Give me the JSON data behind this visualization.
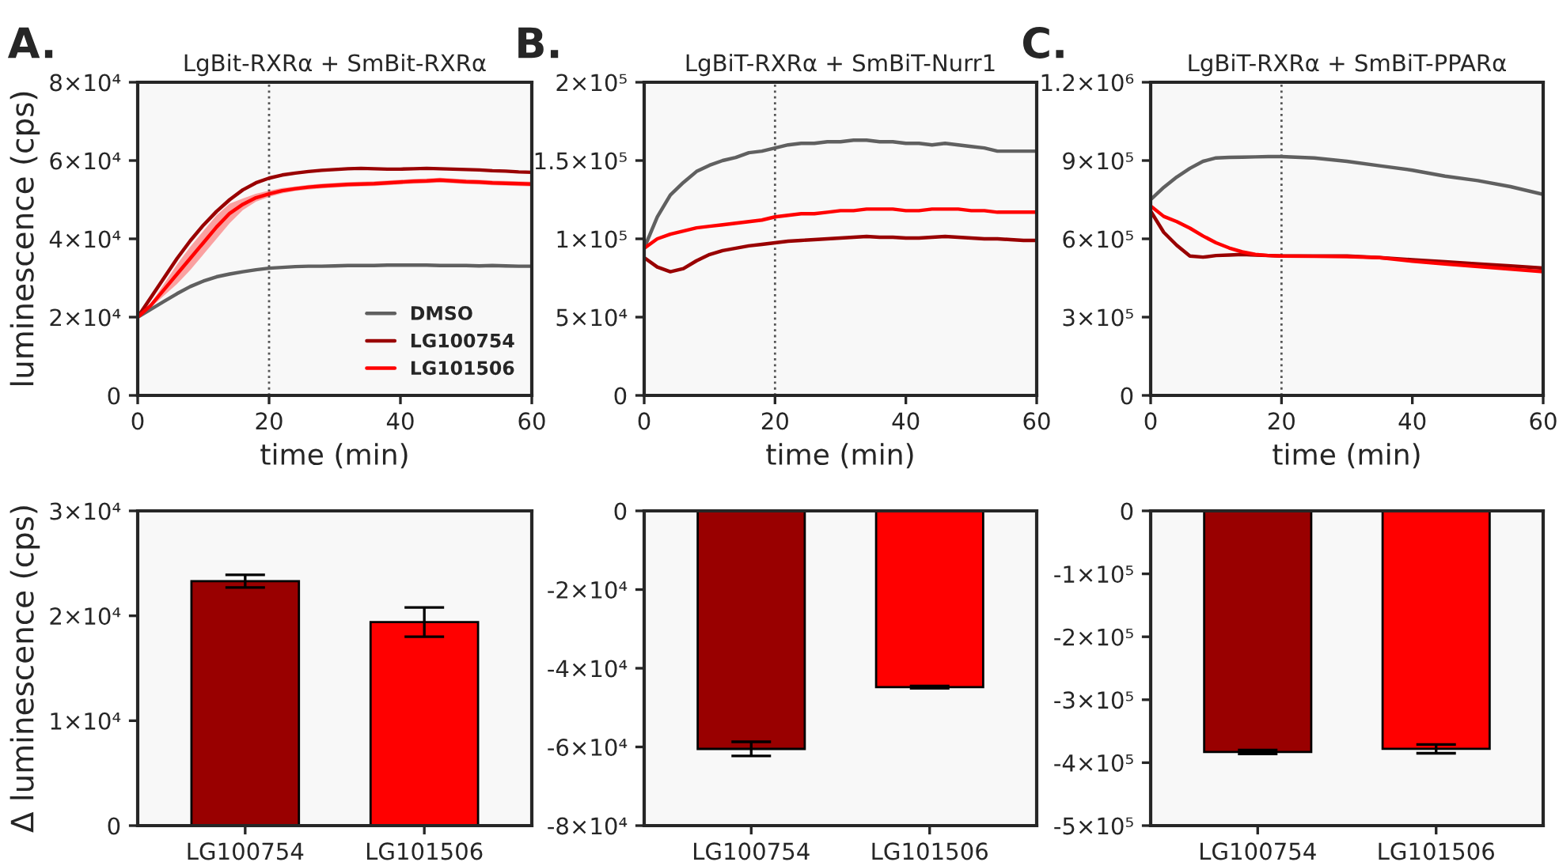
{
  "chart_data": [
    {
      "type": "line",
      "title": "LgBit-RXRα + SmBit-RXRα",
      "xlabel": "time (min)",
      "ylabel": "luminescence (cps)",
      "annotations": [
        "A."
      ],
      "x": [
        0,
        2,
        4,
        6,
        8,
        10,
        12,
        14,
        16,
        18,
        20,
        22,
        24,
        26,
        28,
        30,
        32,
        34,
        36,
        38,
        40,
        42,
        44,
        46,
        48,
        50,
        52,
        54,
        56,
        58,
        60
      ],
      "series": [
        {
          "name": "DMSO",
          "color": "#606060",
          "values": [
            20000,
            22000,
            24000,
            26000,
            27800,
            29200,
            30300,
            31000,
            31600,
            32100,
            32500,
            32700,
            32900,
            33000,
            33000,
            33100,
            33200,
            33200,
            33200,
            33300,
            33300,
            33300,
            33300,
            33200,
            33200,
            33200,
            33100,
            33200,
            33100,
            33000,
            33000
          ]
        },
        {
          "name": "LG100754",
          "color": "#990000",
          "values": [
            20000,
            25000,
            30000,
            35000,
            39500,
            43500,
            47000,
            50000,
            52500,
            54300,
            55500,
            56300,
            56800,
            57200,
            57500,
            57700,
            57900,
            58000,
            57900,
            57800,
            57800,
            57900,
            58000,
            57900,
            57800,
            57700,
            57600,
            57400,
            57300,
            57100,
            57000
          ]
        },
        {
          "name": "LG101506",
          "color": "#ff0000",
          "values": [
            20000,
            23000,
            27000,
            31000,
            35000,
            39000,
            43000,
            46500,
            48800,
            50500,
            51500,
            52300,
            52800,
            53200,
            53500,
            53700,
            53900,
            54000,
            54100,
            54300,
            54500,
            54700,
            54800,
            55000,
            54800,
            54600,
            54500,
            54300,
            54200,
            54100,
            54000
          ],
          "lower": [
            20000,
            22500,
            25500,
            28500,
            32000,
            36000,
            40000,
            44000,
            47300,
            49500,
            50700,
            51600,
            52200,
            52600,
            52900,
            53100,
            53300,
            53400,
            53500,
            53700,
            53900,
            54100,
            54200,
            54400,
            54200,
            54000,
            53900,
            53700,
            53600,
            53500,
            53400
          ],
          "upper": [
            20000,
            23500,
            28500,
            33500,
            38000,
            42000,
            46000,
            49000,
            50300,
            51500,
            52300,
            53000,
            53400,
            53800,
            54100,
            54300,
            54500,
            54600,
            54700,
            54900,
            55100,
            55300,
            55400,
            55600,
            55400,
            55200,
            55100,
            54900,
            54800,
            54700,
            54600
          ]
        }
      ],
      "xlim": [
        0,
        60
      ],
      "xticks": [
        0,
        20,
        40,
        60
      ],
      "ylim": [
        0,
        80000
      ],
      "yticks": [
        0,
        {
          "value": 20000,
          "label": "2×10⁴"
        },
        {
          "value": 40000,
          "label": "4×10⁴"
        },
        {
          "value": 60000,
          "label": "6×10⁴"
        },
        {
          "value": 80000,
          "label": "8×10⁴"
        }
      ],
      "ref_lines": [
        {
          "axis": "x",
          "value": 20,
          "color": "#555555",
          "line_style": "dotted"
        }
      ],
      "legend": "bottom right"
    },
    {
      "type": "line",
      "title": "LgBiT-RXRα + SmBiT-Nurr1",
      "xlabel": "time (min)",
      "annotations": [
        "B."
      ],
      "x": [
        0,
        2,
        4,
        6,
        8,
        10,
        12,
        14,
        16,
        18,
        20,
        22,
        24,
        26,
        28,
        30,
        32,
        34,
        36,
        38,
        40,
        42,
        44,
        46,
        48,
        50,
        52,
        54,
        56,
        58,
        60
      ],
      "series": [
        {
          "color": "#606060",
          "values": [
            94000,
            114000,
            128000,
            136000,
            143000,
            147000,
            150000,
            152000,
            155000,
            156000,
            158000,
            160000,
            161000,
            161000,
            162000,
            162000,
            163000,
            163000,
            162000,
            162000,
            161000,
            161000,
            160000,
            161000,
            160000,
            159000,
            158000,
            156000,
            156000,
            156000,
            156000
          ]
        },
        {
          "color": "#990000",
          "values": [
            88000,
            82000,
            79000,
            81000,
            86000,
            90000,
            92500,
            94000,
            95500,
            96500,
            97500,
            98500,
            99000,
            99500,
            100000,
            100500,
            101000,
            101500,
            101000,
            101000,
            100500,
            100500,
            101000,
            101500,
            101000,
            100500,
            100000,
            100000,
            99500,
            99000,
            99000
          ]
        },
        {
          "color": "#ff0000",
          "values": [
            94000,
            100000,
            103000,
            105000,
            107000,
            108000,
            109000,
            110000,
            111000,
            112000,
            114000,
            115000,
            116000,
            116000,
            117000,
            118000,
            118000,
            119000,
            119000,
            119000,
            118000,
            118000,
            119000,
            119000,
            119000,
            118000,
            118000,
            117000,
            117000,
            117000,
            117000
          ]
        }
      ],
      "xlim": [
        0,
        60
      ],
      "xticks": [
        0,
        20,
        40,
        60
      ],
      "ylim": [
        0,
        200000
      ],
      "yticks": [
        0,
        {
          "value": 50000,
          "label": "5×10⁴"
        },
        {
          "value": 100000,
          "label": "1×10⁵"
        },
        {
          "value": 150000,
          "label": "1.5×10⁵"
        },
        {
          "value": 200000,
          "label": "2×10⁵"
        }
      ],
      "ref_lines": [
        {
          "axis": "x",
          "value": 20,
          "color": "#555555",
          "line_style": "dotted"
        }
      ]
    },
    {
      "type": "line",
      "title": "LgBiT-RXRα + SmBiT-PPARα",
      "xlabel": "time (min)",
      "annotations": [
        "C."
      ],
      "x": [
        0,
        2,
        4,
        6,
        8,
        10,
        12,
        14,
        16,
        18,
        20,
        25,
        30,
        35,
        40,
        45,
        50,
        55,
        60
      ],
      "series": [
        {
          "color": "#606060",
          "values": [
            750000,
            797000,
            837000,
            870000,
            897000,
            910000,
            912000,
            913000,
            914000,
            915000,
            915000,
            910000,
            897000,
            880000,
            863000,
            840000,
            823000,
            800000,
            770000
          ]
        },
        {
          "color": "#990000",
          "values": [
            706000,
            625000,
            575000,
            534000,
            530000,
            536000,
            538000,
            540000,
            538000,
            536000,
            534000,
            534000,
            534000,
            528000,
            520000,
            512000,
            504000,
            496000,
            488000
          ]
        },
        {
          "color": "#ff0000",
          "values": [
            726000,
            686000,
            666000,
            641000,
            611000,
            585000,
            565000,
            550000,
            540000,
            536000,
            534000,
            533000,
            532000,
            528000,
            514000,
            504000,
            494000,
            484000,
            474000
          ]
        }
      ],
      "xlim": [
        0,
        60
      ],
      "xticks": [
        0,
        20,
        40,
        60
      ],
      "ylim": [
        0,
        1200000
      ],
      "yticks": [
        0,
        {
          "value": 300000,
          "label": "3×10⁵"
        },
        {
          "value": 600000,
          "label": "6×10⁵"
        },
        {
          "value": 900000,
          "label": "9×10⁵"
        },
        {
          "value": 1200000,
          "label": "1.2×10⁶"
        }
      ],
      "ref_lines": [
        {
          "axis": "x",
          "value": 20,
          "color": "#555555",
          "line_style": "dotted"
        }
      ]
    },
    {
      "type": "bar",
      "ylabel": "Δ luminescence (cps)",
      "categories": [
        "LG100754",
        "LG101506"
      ],
      "values": [
        23300,
        19400
      ],
      "errors": [
        600,
        1400
      ],
      "colors": [
        "#990000",
        "#ff0000"
      ],
      "ylim": [
        0,
        30000
      ],
      "yticks": [
        0,
        {
          "value": 10000,
          "label": "1×10⁴"
        },
        {
          "value": 20000,
          "label": "2×10⁴"
        },
        {
          "value": 30000,
          "label": "3×10⁴"
        }
      ]
    },
    {
      "type": "bar",
      "categories": [
        "LG100754",
        "LG101506"
      ],
      "values": [
        -60500,
        -44800
      ],
      "errors": [
        1800,
        300
      ],
      "colors": [
        "#990000",
        "#ff0000"
      ],
      "ylim": [
        -80000,
        0
      ],
      "yticks": [
        {
          "value": -80000,
          "label": "-8×10⁴"
        },
        {
          "value": -60000,
          "label": "-6×10⁴"
        },
        {
          "value": -40000,
          "label": "-4×10⁴"
        },
        {
          "value": -20000,
          "label": "-2×10⁴"
        },
        0
      ]
    },
    {
      "type": "bar",
      "categories": [
        "LG100754",
        "LG101506"
      ],
      "values": [
        -383000,
        -378000
      ],
      "errors": [
        3000,
        7000
      ],
      "colors": [
        "#990000",
        "#ff0000"
      ],
      "ylim": [
        -500000,
        0
      ],
      "yticks": [
        {
          "value": -500000,
          "label": "-5×10⁵"
        },
        {
          "value": -400000,
          "label": "-4×10⁵"
        },
        {
          "value": -300000,
          "label": "-3×10⁵"
        },
        {
          "value": -200000,
          "label": "-2×10⁵"
        },
        {
          "value": -100000,
          "label": "-1×10⁵"
        },
        0
      ]
    }
  ]
}
